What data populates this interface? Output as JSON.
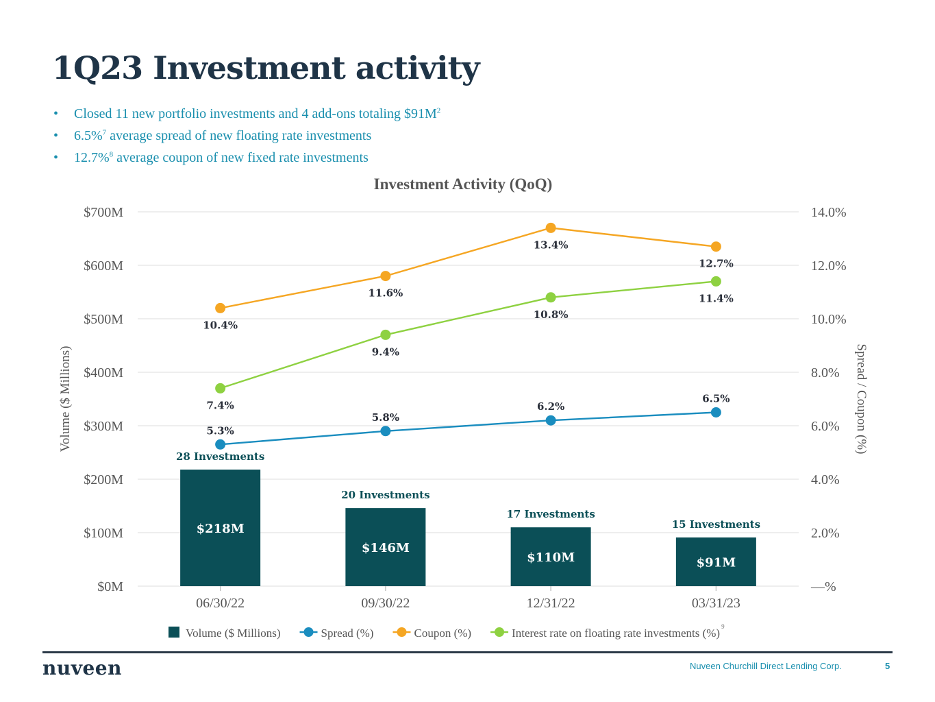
{
  "page": {
    "title": "1Q23 Investment activity",
    "bullets": [
      {
        "text": "Closed 11 new portfolio investments and 4 add-ons totaling $91M",
        "sup": "2",
        "sup_after": ""
      },
      {
        "text": "6.5%",
        "sup": "7",
        "sup_after": " average spread of new floating rate investments"
      },
      {
        "text": "12.7%",
        "sup": "8",
        "sup_after": " average coupon of new fixed rate investments"
      }
    ],
    "bullet_glyph": "•"
  },
  "chart_data": {
    "type": "bar",
    "title": "Investment Activity (QoQ)",
    "categories": [
      "06/30/22",
      "09/30/22",
      "12/31/22",
      "03/31/23"
    ],
    "xlabel": "",
    "ylabel": "Volume ($ Millions)",
    "ylabel_right": "Spread / Coupon (%)",
    "ylim": [
      0,
      700
    ],
    "ylim_right": [
      0,
      14
    ],
    "yticks": [
      "$0M",
      "$100M",
      "$200M",
      "$300M",
      "$400M",
      "$500M",
      "$600M",
      "$700M"
    ],
    "yticks_right": [
      "—%",
      "2.0%",
      "4.0%",
      "6.0%",
      "8.0%",
      "10.0%",
      "12.0%",
      "14.0%"
    ],
    "grid": true,
    "legend_position": "bottom",
    "series": [
      {
        "name": "Volume ($ Millions)",
        "kind": "bar",
        "axis": "left",
        "color": "#0b4f57",
        "values": [
          218,
          146,
          110,
          91
        ],
        "labels": [
          "$218M",
          "$146M",
          "$110M",
          "$91M"
        ],
        "annotations": [
          "28 Investments",
          "20 Investments",
          "17 Investments",
          "15 Investments"
        ]
      },
      {
        "name": "Spread (%)",
        "kind": "line",
        "axis": "right",
        "color": "#1a8dbf",
        "values": [
          5.3,
          5.8,
          6.2,
          6.5
        ],
        "labels": [
          "5.3%",
          "5.8%",
          "6.2%",
          "6.5%"
        ],
        "label_pos": "above"
      },
      {
        "name": "Coupon (%)",
        "kind": "line",
        "axis": "right",
        "color": "#f5a623",
        "values": [
          10.4,
          11.6,
          13.4,
          12.7
        ],
        "labels": [
          "10.4%",
          "11.6%",
          "13.4%",
          "12.7%"
        ],
        "label_pos": "below"
      },
      {
        "name": "Interest rate on floating rate investments (%)",
        "kind": "line",
        "axis": "right",
        "color": "#8ed141",
        "values": [
          7.4,
          9.4,
          10.8,
          11.4
        ],
        "labels": [
          "7.4%",
          "9.4%",
          "10.8%",
          "11.4%"
        ],
        "label_pos": "below"
      }
    ],
    "legend_footnote": "9"
  },
  "footer": {
    "logo": "nuveen",
    "company": "Nuveen Churchill Direct Lending Corp.",
    "page_number": "5"
  }
}
